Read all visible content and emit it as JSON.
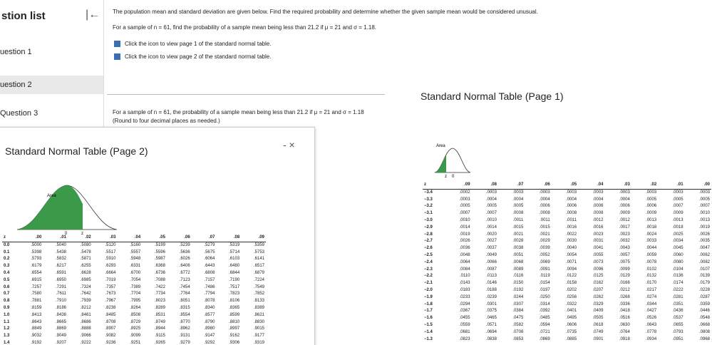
{
  "sidebar": {
    "title": "stion list",
    "items": [
      "uestion 1",
      "uestion 2",
      "Question 3"
    ]
  },
  "question": {
    "intro": "The population mean and standard deviation are given below. Find the required probability and determine whether the given sample mean would be considered unusual.",
    "prompt": "For a sample of n = 61, find the probability of a sample mean being less than 21.2 if μ = 21 and σ = 1.18.",
    "link1": "Click the icon to view page 1 of the standard normal table.",
    "link2": "Click the icon to view page 2 of the standard normal table.",
    "answer_prompt": "For a sample of n = 61, the probability of a sample mean being less than 21.2 if μ = 21 and σ = 1.18",
    "note": "(Round to four decimal places as needed.)"
  },
  "table_page1": {
    "title": "Standard Normal Table (Page 1)",
    "area_label": "Area",
    "z_label": "z",
    "zero_label": "0",
    "header": [
      "z",
      ".09",
      ".08",
      ".07",
      ".06",
      ".05",
      ".04",
      ".03",
      ".02",
      ".01",
      ".00"
    ],
    "rows": [
      [
        "−3.4",
        ".0002",
        ".0003",
        ".0003",
        ".0003",
        ".0003",
        ".0003",
        ".0003",
        ".0003",
        ".0003",
        ".0003"
      ],
      [
        "−3.3",
        ".0003",
        ".0004",
        ".0004",
        ".0004",
        ".0004",
        ".0004",
        ".0004",
        ".0005",
        ".0005",
        ".0005"
      ],
      [
        "−3.2",
        ".0005",
        ".0005",
        ".0005",
        ".0006",
        ".0006",
        ".0006",
        ".0006",
        ".0006",
        ".0007",
        ".0007"
      ],
      [
        "−3.1",
        ".0007",
        ".0007",
        ".0008",
        ".0008",
        ".0008",
        ".0008",
        ".0009",
        ".0009",
        ".0009",
        ".0010"
      ],
      [
        "−3.0",
        ".0010",
        ".0010",
        ".0011",
        ".0011",
        ".0011",
        ".0012",
        ".0012",
        ".0013",
        ".0013",
        ".0013"
      ],
      [
        "−2.9",
        ".0014",
        ".0014",
        ".0015",
        ".0015",
        ".0016",
        ".0016",
        ".0017",
        ".0018",
        ".0018",
        ".0019"
      ],
      [
        "−2.8",
        ".0019",
        ".0020",
        ".0021",
        ".0021",
        ".0022",
        ".0023",
        ".0023",
        ".0024",
        ".0025",
        ".0026"
      ],
      [
        "−2.7",
        ".0026",
        ".0027",
        ".0028",
        ".0029",
        ".0030",
        ".0031",
        ".0032",
        ".0033",
        ".0034",
        ".0035"
      ],
      [
        "−2.6",
        ".0036",
        ".0037",
        ".0038",
        ".0039",
        ".0040",
        ".0041",
        ".0043",
        ".0044",
        ".0045",
        ".0047"
      ],
      [
        "−2.5",
        ".0048",
        ".0049",
        ".0051",
        ".0052",
        ".0054",
        ".0055",
        ".0057",
        ".0059",
        ".0060",
        ".0062"
      ],
      [
        "−2.4",
        ".0064",
        ".0066",
        ".0068",
        ".0069",
        ".0071",
        ".0073",
        ".0075",
        ".0078",
        ".0080",
        ".0082"
      ],
      [
        "−2.3",
        ".0084",
        ".0087",
        ".0089",
        ".0091",
        ".0094",
        ".0096",
        ".0099",
        ".0102",
        ".0104",
        ".0107"
      ],
      [
        "−2.2",
        ".0110",
        ".0113",
        ".0116",
        ".0119",
        ".0122",
        ".0125",
        ".0129",
        ".0132",
        ".0136",
        ".0139"
      ],
      [
        "−2.1",
        ".0143",
        ".0146",
        ".0150",
        ".0154",
        ".0158",
        ".0162",
        ".0166",
        ".0170",
        ".0174",
        ".0179"
      ],
      [
        "−2.0",
        ".0183",
        ".0188",
        ".0192",
        ".0197",
        ".0202",
        ".0207",
        ".0212",
        ".0217",
        ".0222",
        ".0228"
      ],
      [
        "−1.9",
        ".0233",
        ".0239",
        ".0244",
        ".0250",
        ".0256",
        ".0262",
        ".0268",
        ".0274",
        ".0281",
        ".0287"
      ],
      [
        "−1.8",
        ".0294",
        ".0301",
        ".0307",
        ".0314",
        ".0322",
        ".0329",
        ".0336",
        ".0344",
        ".0351",
        ".0359"
      ],
      [
        "−1.7",
        ".0367",
        ".0375",
        ".0384",
        ".0392",
        ".0401",
        ".0409",
        ".0418",
        ".0427",
        ".0436",
        ".0446"
      ],
      [
        "−1.6",
        ".0455",
        ".0465",
        ".0475",
        ".0485",
        ".0495",
        ".0505",
        ".0516",
        ".0526",
        ".0537",
        ".0548"
      ],
      [
        "−1.5",
        ".0559",
        ".0571",
        ".0582",
        ".0594",
        ".0606",
        ".0618",
        ".0630",
        ".0643",
        ".0655",
        ".0668"
      ],
      [
        "−1.4",
        ".0681",
        ".0694",
        ".0708",
        ".0721",
        ".0735",
        ".0749",
        ".0764",
        ".0778",
        ".0793",
        ".0808"
      ],
      [
        "−1.3",
        ".0823",
        ".0838",
        ".0853",
        ".0869",
        ".0885",
        ".0901",
        ".0918",
        ".0934",
        ".0951",
        ".0968"
      ]
    ]
  },
  "table_page2": {
    "title": "Standard Normal Table (Page 2)",
    "area_label": "Area",
    "z_label": "z",
    "zero_label": "0",
    "controls": "- ×",
    "header": [
      "z",
      ".00",
      ".01",
      ".02",
      ".03",
      ".04",
      ".05",
      ".06",
      ".07",
      ".08",
      ".09"
    ],
    "rows": [
      [
        "0.0",
        ".5000",
        ".5040",
        ".5080",
        ".5120",
        ".5160",
        ".5199",
        ".5239",
        ".5279",
        ".5319",
        ".5359"
      ],
      [
        "0.1",
        ".5398",
        ".5438",
        ".5478",
        ".5517",
        ".5557",
        ".5596",
        ".5636",
        ".5675",
        ".5714",
        ".5753"
      ],
      [
        "0.2",
        ".5793",
        ".5832",
        ".5871",
        ".5910",
        ".5948",
        ".5987",
        ".6026",
        ".6064",
        ".6103",
        ".6141"
      ],
      [
        "0.3",
        ".6179",
        ".6217",
        ".6255",
        ".6293",
        ".6331",
        ".6368",
        ".6406",
        ".6443",
        ".6480",
        ".6517"
      ],
      [
        "0.4",
        ".6554",
        ".6591",
        ".6628",
        ".6664",
        ".6700",
        ".6736",
        ".6772",
        ".6808",
        ".6844",
        ".6879"
      ],
      [
        "0.5",
        ".6915",
        ".6950",
        ".6985",
        ".7019",
        ".7054",
        ".7088",
        ".7123",
        ".7157",
        ".7190",
        ".7224"
      ],
      [
        "0.6",
        ".7257",
        ".7291",
        ".7324",
        ".7357",
        ".7389",
        ".7422",
        ".7454",
        ".7486",
        ".7517",
        ".7549"
      ],
      [
        "0.7",
        ".7580",
        ".7611",
        ".7642",
        ".7673",
        ".7704",
        ".7734",
        ".7764",
        ".7794",
        ".7823",
        ".7852"
      ],
      [
        "0.8",
        ".7881",
        ".7910",
        ".7939",
        ".7967",
        ".7995",
        ".8023",
        ".8051",
        ".8078",
        ".8106",
        ".8133"
      ],
      [
        "0.9",
        ".8159",
        ".8186",
        ".8212",
        ".8238",
        ".8264",
        ".8289",
        ".8315",
        ".8340",
        ".8365",
        ".8389"
      ],
      [
        "1.0",
        ".8413",
        ".8438",
        ".8461",
        ".8485",
        ".8508",
        ".8531",
        ".8554",
        ".8577",
        ".8599",
        ".8621"
      ],
      [
        "1.1",
        ".8643",
        ".8665",
        ".8686",
        ".8708",
        ".8729",
        ".8749",
        ".8770",
        ".8790",
        ".8810",
        ".8830"
      ],
      [
        "1.2",
        ".8849",
        ".8869",
        ".8888",
        ".8907",
        ".8925",
        ".8944",
        ".8962",
        ".8980",
        ".8997",
        ".9015"
      ],
      [
        "1.3",
        ".9032",
        ".9049",
        ".9066",
        ".9082",
        ".9099",
        ".9115",
        ".9131",
        ".9147",
        ".9162",
        ".9177"
      ],
      [
        "1.4",
        ".9192",
        ".9207",
        ".9222",
        ".9236",
        ".9251",
        ".9265",
        ".9279",
        ".9292",
        ".9306",
        ".9319"
      ]
    ]
  }
}
